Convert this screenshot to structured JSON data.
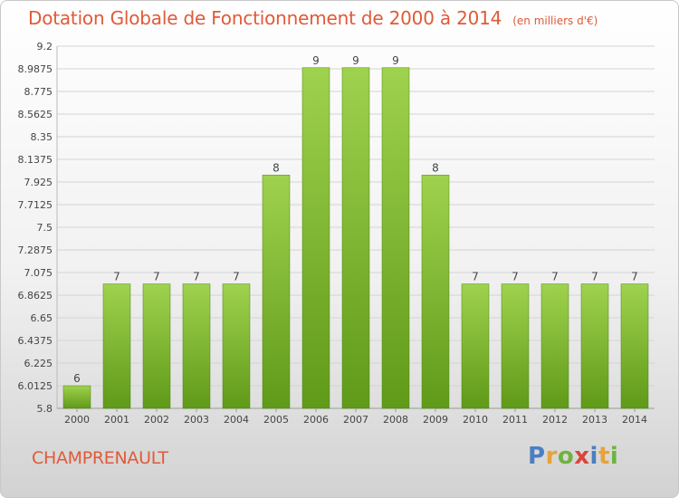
{
  "title": "Dotation Globale de Fonctionnement de 2000 à 2014",
  "unit": "(en milliers d'€)",
  "commune": "CHAMPRENAULT",
  "logo": {
    "letters": [
      "P",
      "r",
      "o",
      "x",
      "i",
      "t",
      "i"
    ],
    "colors": [
      "#4a7fc1",
      "#e8a23a",
      "#6fb33f",
      "#d8463a",
      "#4a7fc1",
      "#e8a23a",
      "#6fb33f"
    ]
  },
  "colors": {
    "bar_top": "#9fd24e",
    "bar_bottom": "#5f9a18",
    "text": "#e05a38"
  },
  "chart_data": {
    "type": "bar",
    "categories": [
      "2000",
      "2001",
      "2002",
      "2003",
      "2004",
      "2005",
      "2006",
      "2007",
      "2008",
      "2009",
      "2010",
      "2011",
      "2012",
      "2013",
      "2014"
    ],
    "values": [
      6.012,
      6.968,
      6.968,
      6.968,
      6.968,
      7.99,
      8.998,
      8.998,
      8.998,
      7.99,
      6.968,
      6.968,
      6.968,
      6.968,
      6.968
    ],
    "data_labels": [
      "6",
      "7",
      "7",
      "7",
      "7",
      "8",
      "9",
      "9",
      "9",
      "8",
      "7",
      "7",
      "7",
      "7",
      "7"
    ],
    "yticks": [
      "5.8",
      "6.0125",
      "6.225",
      "6.4375",
      "6.65",
      "6.8625",
      "7.075",
      "7.2875",
      "7.5",
      "7.7125",
      "7.925",
      "8.1375",
      "8.35",
      "8.5625",
      "8.775",
      "8.9875",
      "9.2"
    ],
    "ylim": [
      5.8,
      9.2
    ],
    "grid": true
  }
}
